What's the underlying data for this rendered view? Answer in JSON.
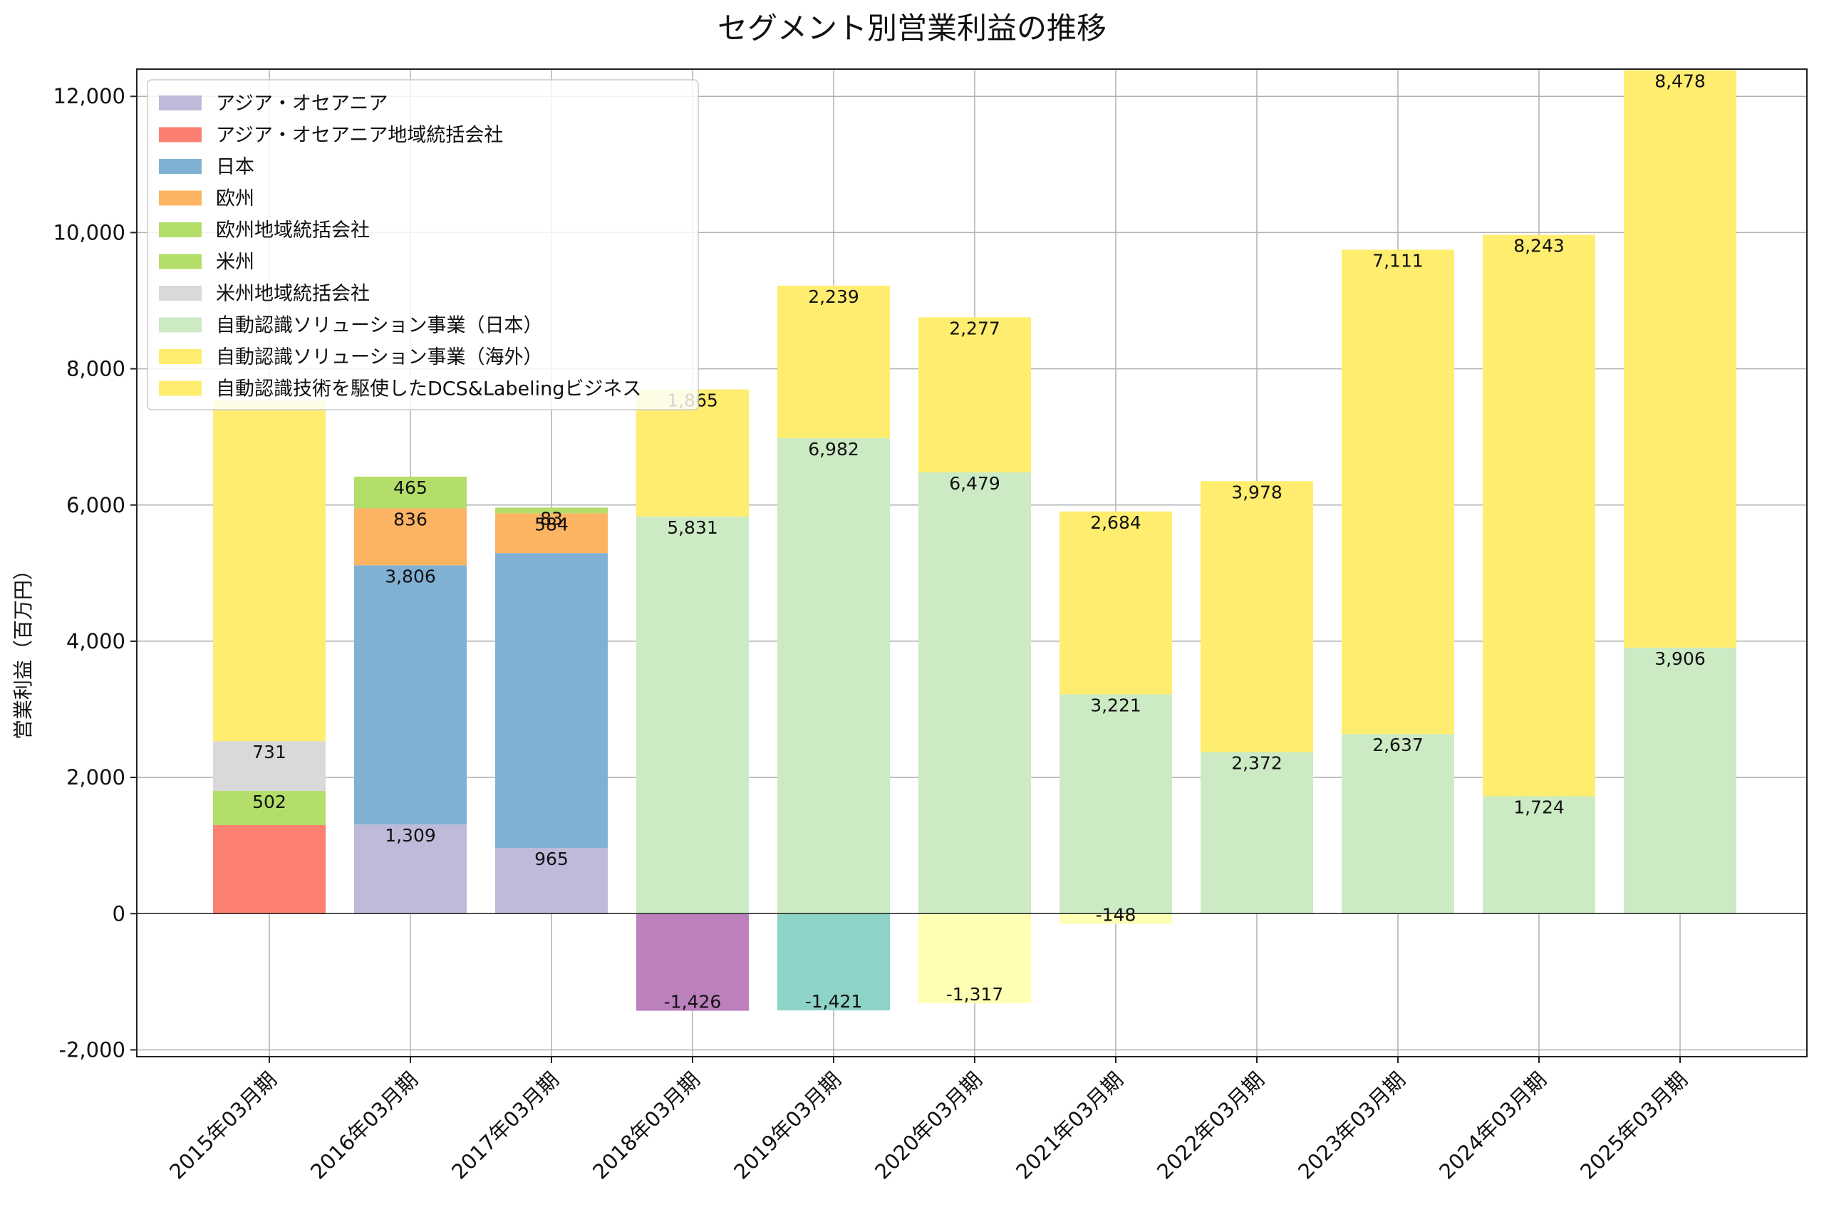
{
  "chart_data": {
    "type": "bar",
    "stacked": true,
    "title": "セグメント別営業利益の推移",
    "xlabel": "",
    "ylabel": "営業利益（百万円）",
    "ylim": [
      -2100,
      12400
    ],
    "yticks": [
      -2000,
      0,
      2000,
      4000,
      6000,
      8000,
      10000,
      12000
    ],
    "ytick_labels": [
      "-2,000",
      "0",
      "2,000",
      "4,000",
      "6,000",
      "8,000",
      "10,000",
      "12,000"
    ],
    "grid": true,
    "legend_position": "top-left",
    "categories": [
      "2015年03月期",
      "2016年03月期",
      "2017年03月期",
      "2018年03月期",
      "2019年03月期",
      "2020年03月期",
      "2021年03月期",
      "2022年03月期",
      "2023年03月期",
      "2024年03月期",
      "2025年03月期"
    ],
    "series": [
      {
        "name": "アジア・オセアニア",
        "color": "#bebada",
        "values": [
          null,
          1309,
          965,
          null,
          null,
          null,
          null,
          null,
          null,
          null,
          null
        ],
        "labels": [
          "",
          "1,309",
          "965",
          "",
          "",
          "",
          "",
          "",
          "",
          "",
          ""
        ]
      },
      {
        "name": "アジア・オセアニア地域統括会社",
        "color": "#fb8072",
        "values": [
          1300,
          null,
          null,
          null,
          null,
          null,
          null,
          null,
          null,
          null,
          null
        ],
        "labels": [
          "",
          "",
          "",
          "",
          "",
          "",
          "",
          "",
          "",
          "",
          ""
        ]
      },
      {
        "name": "日本",
        "color": "#80b1d3",
        "values": [
          null,
          3806,
          4330,
          null,
          null,
          null,
          null,
          null,
          null,
          null,
          null
        ],
        "labels": [
          "",
          "3,806",
          "",
          "",
          "",
          "",
          "",
          "",
          "",
          "",
          ""
        ]
      },
      {
        "name": "欧州",
        "color": "#fdb462",
        "values": [
          null,
          836,
          584,
          null,
          null,
          null,
          null,
          null,
          null,
          null,
          null
        ],
        "labels": [
          "",
          "836",
          "584",
          "",
          "",
          "",
          "",
          "",
          "",
          "",
          ""
        ]
      },
      {
        "name": "欧州地域統括会社",
        "color": "#b3de69",
        "values": [
          502,
          null,
          null,
          null,
          null,
          null,
          null,
          null,
          null,
          null,
          null
        ],
        "labels": [
          "502",
          "",
          "",
          "",
          "",
          "",
          "",
          "",
          "",
          "",
          ""
        ]
      },
      {
        "name": "米州",
        "color": "#b3de69",
        "values": [
          null,
          465,
          83,
          null,
          null,
          null,
          null,
          null,
          null,
          null,
          null
        ],
        "labels": [
          "",
          "465",
          "83",
          "",
          "",
          "",
          "",
          "",
          "",
          "",
          ""
        ]
      },
      {
        "name": "米州地域統括会社",
        "color": "#d9d9d9",
        "values": [
          731,
          null,
          null,
          null,
          null,
          null,
          null,
          null,
          null,
          null,
          null
        ],
        "labels": [
          "731",
          "",
          "",
          "",
          "",
          "",
          "",
          "",
          "",
          "",
          ""
        ]
      },
      {
        "name": "自動認識ソリューション事業（日本）",
        "color": "#ccebc5",
        "values": [
          null,
          null,
          null,
          5831,
          6982,
          6479,
          3221,
          2372,
          2637,
          1724,
          3906
        ],
        "labels": [
          "",
          "",
          "",
          "5,831",
          "6,982",
          "6,479",
          "3,221",
          "2,372",
          "2,637",
          "1,724",
          "3,906"
        ]
      },
      {
        "name": "自動認識ソリューション事業（海外）",
        "color": "#ffed6f",
        "values": [
          5000,
          null,
          null,
          1865,
          2239,
          2277,
          2684,
          3978,
          7111,
          8243,
          8478
        ],
        "labels": [
          "",
          "",
          "",
          "1,865",
          "2,239",
          "2,277",
          "2,684",
          "3,978",
          "7,111",
          "8,243",
          "8,478"
        ]
      },
      {
        "name": "自動認識技術を駆使したDCS&Labelingビジネス",
        "color": "#ffed6f",
        "values": [
          null,
          null,
          null,
          null,
          null,
          null,
          null,
          null,
          null,
          null,
          null
        ],
        "labels": [
          "",
          "",
          "",
          "",
          "",
          "",
          "",
          "",
          "",
          "",
          ""
        ]
      },
      {
        "name": "",
        "legend": false,
        "color": "#bc80bd",
        "values": [
          null,
          null,
          null,
          -1426,
          null,
          null,
          null,
          null,
          null,
          null,
          null
        ],
        "labels": [
          "",
          "",
          "",
          "-1,426",
          "",
          "",
          "",
          "",
          "",
          "",
          ""
        ]
      },
      {
        "name": "",
        "legend": false,
        "color": "#8dd3c7",
        "values": [
          null,
          null,
          null,
          null,
          -1421,
          null,
          null,
          null,
          null,
          null,
          null
        ],
        "labels": [
          "",
          "",
          "",
          "",
          "-1,421",
          "",
          "",
          "",
          "",
          "",
          ""
        ]
      },
      {
        "name": "",
        "legend": false,
        "color": "#ffffb3",
        "values": [
          null,
          null,
          null,
          null,
          null,
          -1317,
          -148,
          null,
          null,
          null,
          null
        ],
        "labels": [
          "",
          "",
          "",
          "",
          "",
          "-1,317",
          "-148",
          "",
          "",
          "",
          ""
        ]
      }
    ]
  }
}
